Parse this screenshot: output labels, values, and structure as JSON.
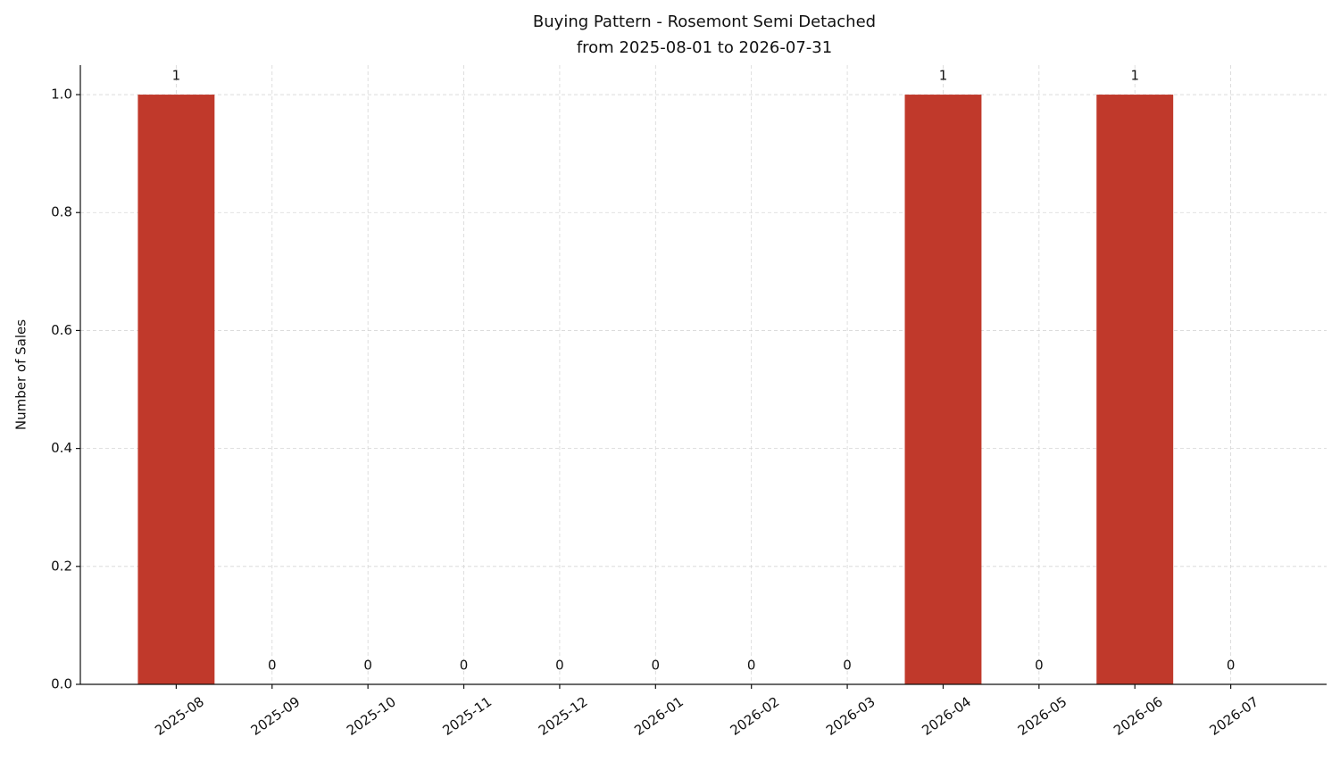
{
  "chart_data": {
    "type": "bar",
    "title": "Buying Pattern - Rosemont Semi Detached",
    "subtitle": "from 2025-08-01 to 2026-07-31",
    "y_label": "Number of Sales",
    "categories": [
      "2025-08",
      "2025-09",
      "2025-10",
      "2025-11",
      "2025-12",
      "2026-01",
      "2026-02",
      "2026-03",
      "2026-04",
      "2026-05",
      "2026-06",
      "2026-07"
    ],
    "values": [
      1,
      0,
      0,
      0,
      0,
      0,
      0,
      0,
      1,
      0,
      1,
      0
    ],
    "color": "#c0392b",
    "ylim": [
      0,
      1.05
    ],
    "yticks": [
      {
        "value": 0,
        "label": "0.0"
      },
      0.2,
      0.4,
      0.6,
      0.8,
      {
        "value": 1,
        "label": "1.0"
      }
    ],
    "grid": true
  }
}
